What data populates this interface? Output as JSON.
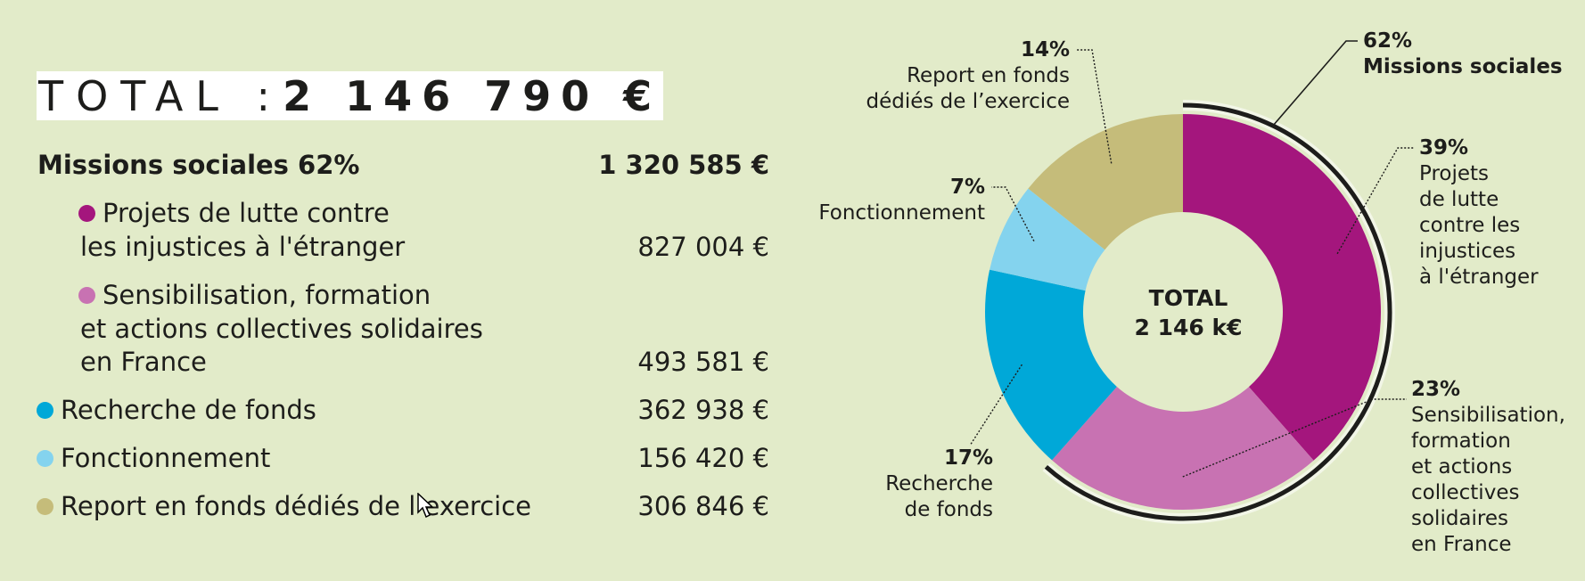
{
  "header": {
    "total_label": "TOTAL : ",
    "total_value": "2 146 790 €"
  },
  "table": {
    "missions": {
      "label": "Missions sociales 62%",
      "amount": "1 320 585 €"
    },
    "projets": {
      "line1": "Projets de lutte contre",
      "line2": "les injustices à l'étranger",
      "amount": "827 004 €"
    },
    "sensibilisation": {
      "line1": "Sensibilisation, formation",
      "line2": "et actions collectives solidaires",
      "line3": "en France",
      "amount": "493 581 €"
    },
    "recherche": {
      "label": "Recherche de fonds",
      "amount": "362 938 €"
    },
    "fonctionnement": {
      "label": "Fonctionnement",
      "amount": "156 420 €"
    },
    "report": {
      "label": "Report en fonds dédiés de l’exercice",
      "amount": "306 846 €"
    }
  },
  "chart_data": {
    "type": "pie",
    "style": "donut",
    "center_label": [
      "TOTAL",
      "2 146 k€"
    ],
    "slices": [
      {
        "pct_label": "39%",
        "label": [
          "Projets",
          "de lutte",
          "contre les",
          "injustices",
          "à l'étranger"
        ],
        "value": 827004,
        "color": "#a4167d"
      },
      {
        "pct_label": "23%",
        "label": [
          "Sensibilisation,",
          "formation",
          "et actions",
          "collectives",
          "solidaires",
          "en France"
        ],
        "value": 493581,
        "color": "#c872b2"
      },
      {
        "pct_label": "17%",
        "label": [
          "Recherche",
          "de fonds"
        ],
        "value": 362938,
        "color": "#00a8d8"
      },
      {
        "pct_label": "7%",
        "label": [
          "Fonctionnement"
        ],
        "value": 156420,
        "color": "#84d3ee"
      },
      {
        "pct_label": "14%",
        "label": [
          "Report en fonds",
          "dédiés de l’exercice"
        ],
        "value": 306846,
        "color": "#c5bc7a"
      }
    ],
    "group_arc": {
      "pct_label": "62%",
      "label": "Missions sociales",
      "covers": [
        "Projets",
        "Sensibilisation"
      ]
    }
  },
  "colors": {
    "background": "#e2ebc9",
    "projets": "#a4167d",
    "sensibilisation": "#c872b2",
    "recherche": "#00a8d8",
    "fonctionnement": "#84d3ee",
    "report": "#c5bc7a",
    "text": "#1d1d1b"
  }
}
